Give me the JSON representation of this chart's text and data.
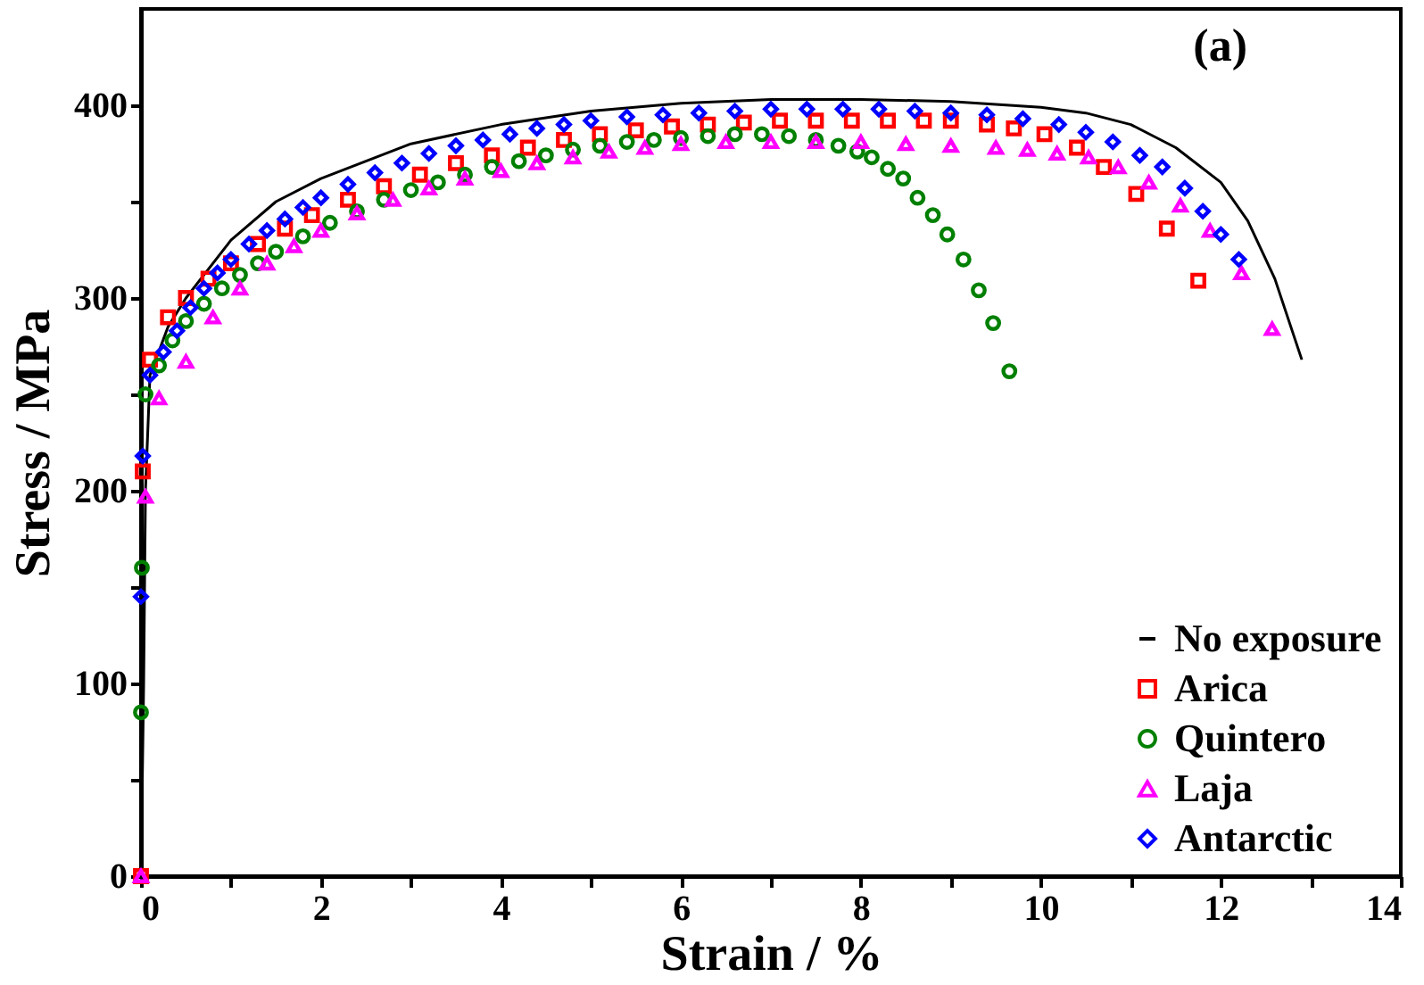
{
  "chart_data": {
    "type": "scatter",
    "xlabel": "Strain / %",
    "ylabel": "Stress / MPa",
    "annotations": [
      "(a)"
    ],
    "xlim": [
      0,
      14
    ],
    "ylim": [
      0,
      450
    ],
    "xticks": [
      0,
      {
        "value": 1,
        "label": null
      },
      2,
      {
        "value": 3,
        "label": null
      },
      4,
      {
        "value": 5,
        "label": null
      },
      6,
      {
        "value": 7,
        "label": null
      },
      8,
      {
        "value": 9,
        "label": null
      },
      10,
      {
        "value": 11,
        "label": null
      },
      12,
      {
        "value": 13,
        "label": null
      },
      14
    ],
    "yticks": [
      0,
      {
        "value": 50,
        "label": null
      },
      100,
      {
        "value": 150,
        "label": null
      },
      200,
      {
        "value": 250,
        "label": null
      },
      300,
      {
        "value": 350,
        "label": null
      },
      400
    ],
    "grid": false,
    "legend": "bottom right",
    "series": [
      {
        "name": "No exposure",
        "type": "line",
        "marker": "none",
        "line_style": "solid",
        "color": "#000000",
        "x": [
          0,
          0.03,
          0.05,
          0.1,
          0.3,
          0.5,
          1,
          1.5,
          2,
          3,
          4,
          5,
          6,
          7,
          8,
          9,
          10,
          10.5,
          11,
          11.5,
          12,
          12.3,
          12.6,
          12.9
        ],
        "values": [
          0,
          100,
          200,
          260,
          285,
          300,
          330,
          350,
          362,
          380,
          390,
          397,
          401,
          403,
          403,
          402,
          399,
          396,
          390,
          378,
          360,
          340,
          310,
          268
        ]
      },
      {
        "name": "Arica",
        "marker": "square",
        "color": "#ff0000",
        "x": [
          0,
          0.02,
          0.1,
          0.3,
          0.5,
          0.75,
          1.0,
          1.3,
          1.6,
          1.9,
          2.3,
          2.7,
          3.1,
          3.5,
          3.9,
          4.3,
          4.7,
          5.1,
          5.5,
          5.9,
          6.3,
          6.7,
          7.1,
          7.5,
          7.9,
          8.3,
          8.7,
          9.0,
          9.4,
          9.7,
          10.04,
          10.4,
          10.7,
          11.06,
          11.4,
          11.75
        ],
        "values": [
          0,
          210,
          268,
          290,
          300,
          310,
          318,
          328,
          336,
          343,
          351,
          358,
          364,
          370,
          374,
          378,
          382,
          385,
          387,
          389,
          390,
          391,
          392,
          392,
          392,
          392,
          392,
          392,
          390,
          388,
          385,
          378,
          368,
          354,
          336,
          309
        ]
      },
      {
        "name": "Quintero",
        "marker": "circle",
        "color": "#008000",
        "x": [
          0,
          0.01,
          0.05,
          0.2,
          0.35,
          0.5,
          0.7,
          0.9,
          1.1,
          1.3,
          1.5,
          1.8,
          2.1,
          2.4,
          2.7,
          3.0,
          3.3,
          3.6,
          3.9,
          4.2,
          4.5,
          4.8,
          5.1,
          5.4,
          5.7,
          6.0,
          6.3,
          6.6,
          6.9,
          7.2,
          7.5,
          7.75,
          7.96,
          8.12,
          8.3,
          8.47,
          8.63,
          8.8,
          8.96,
          9.14,
          9.31,
          9.47,
          9.65
        ],
        "values": [
          85,
          160,
          250,
          265,
          278,
          288,
          297,
          305,
          312,
          318,
          324,
          332,
          339,
          345,
          351,
          356,
          360,
          364,
          368,
          371,
          374,
          377,
          379,
          381,
          382,
          383,
          384,
          385,
          385,
          384,
          382,
          379,
          376,
          373,
          367,
          362,
          352,
          343,
          333,
          320,
          304,
          287,
          262
        ]
      },
      {
        "name": "Laja",
        "marker": "triangle",
        "color": "#ff00ff",
        "x": [
          0,
          0.05,
          0.2,
          0.5,
          0.8,
          1.1,
          1.4,
          1.7,
          2.0,
          2.4,
          2.8,
          3.2,
          3.6,
          4.0,
          4.4,
          4.8,
          5.2,
          5.6,
          6.0,
          6.5,
          7.0,
          7.5,
          8.0,
          8.5,
          9.0,
          9.5,
          9.85,
          10.18,
          10.53,
          10.86,
          11.2,
          11.55,
          11.88,
          12.23,
          12.57
        ],
        "values": [
          0,
          197,
          248,
          267,
          290,
          305,
          318,
          327,
          335,
          344,
          351,
          357,
          362,
          366,
          370,
          373,
          376,
          378,
          380,
          381,
          381,
          381,
          381,
          380,
          379,
          378,
          377,
          375,
          373,
          368,
          360,
          348,
          335,
          313,
          284
        ]
      },
      {
        "name": "Antarctic",
        "marker": "diamond",
        "color": "#0000ff",
        "x": [
          0,
          0.02,
          0.1,
          0.25,
          0.4,
          0.55,
          0.7,
          0.85,
          1.0,
          1.2,
          1.4,
          1.6,
          1.8,
          2.0,
          2.3,
          2.6,
          2.9,
          3.2,
          3.5,
          3.8,
          4.1,
          4.4,
          4.7,
          5.0,
          5.4,
          5.8,
          6.2,
          6.6,
          7.0,
          7.4,
          7.8,
          8.2,
          8.6,
          9.0,
          9.4,
          9.8,
          10.2,
          10.5,
          10.8,
          11.1,
          11.35,
          11.6,
          11.8,
          12.0,
          12.2
        ],
        "values": [
          145,
          218,
          260,
          272,
          283,
          295,
          305,
          313,
          320,
          328,
          335,
          341,
          347,
          352,
          359,
          365,
          370,
          375,
          379,
          382,
          385,
          388,
          390,
          392,
          394,
          395,
          396,
          397,
          398,
          398,
          398,
          398,
          397,
          396,
          395,
          393,
          390,
          386,
          381,
          374,
          368,
          357,
          345,
          333,
          320
        ]
      }
    ]
  }
}
